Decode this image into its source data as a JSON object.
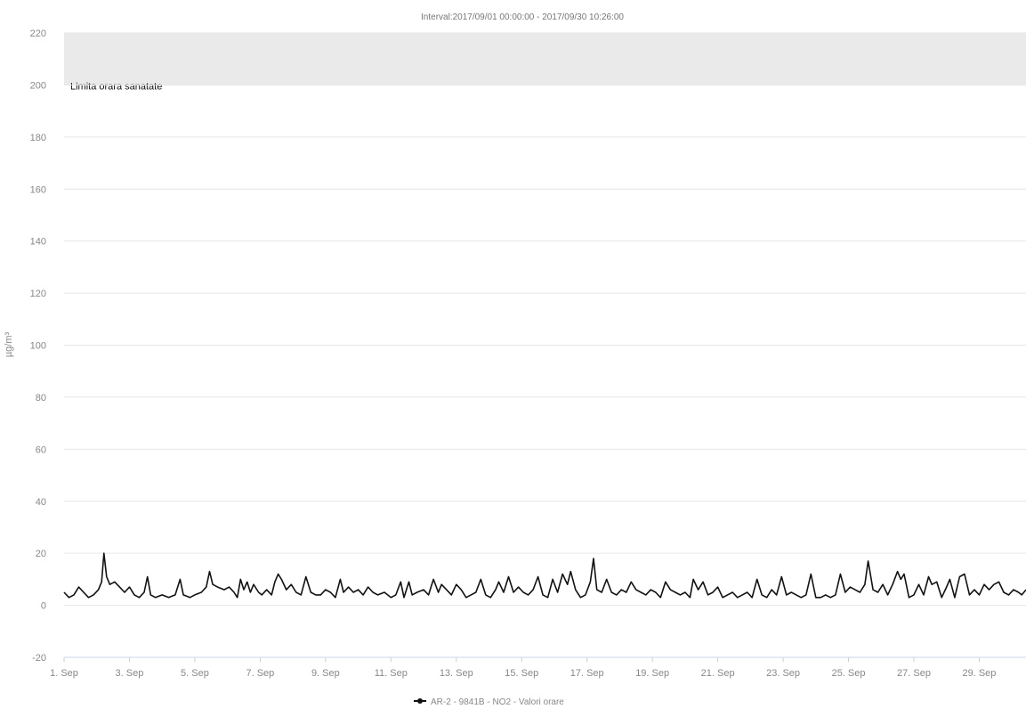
{
  "chart_data": {
    "type": "line",
    "title": "Interval:2017/09/01 00:00:00 - 2017/09/30 10:26:00",
    "ylabel": "µg/m³",
    "xlabel": "",
    "ylim": [
      -20,
      220
    ],
    "yticks": [
      -20,
      0,
      20,
      40,
      60,
      80,
      100,
      120,
      140,
      160,
      180,
      200,
      220
    ],
    "xlim": [
      1,
      30.43
    ],
    "xticks": [
      {
        "day": 1,
        "label": "1. Sep"
      },
      {
        "day": 3,
        "label": "3. Sep"
      },
      {
        "day": 5,
        "label": "5. Sep"
      },
      {
        "day": 7,
        "label": "7. Sep"
      },
      {
        "day": 9,
        "label": "9. Sep"
      },
      {
        "day": 11,
        "label": "11. Sep"
      },
      {
        "day": 13,
        "label": "13. Sep"
      },
      {
        "day": 15,
        "label": "15. Sep"
      },
      {
        "day": 17,
        "label": "17. Sep"
      },
      {
        "day": 19,
        "label": "19. Sep"
      },
      {
        "day": 21,
        "label": "21. Sep"
      },
      {
        "day": 23,
        "label": "23. Sep"
      },
      {
        "day": 25,
        "label": "25. Sep"
      },
      {
        "day": 27,
        "label": "27. Sep"
      },
      {
        "day": 29,
        "label": "29. Sep"
      }
    ],
    "grid": true,
    "legend_position": "bottom-center",
    "plot_band": {
      "from": 200,
      "to": 220,
      "label": "Limita orara sanatate",
      "color": "#d8d8d8"
    },
    "series": [
      {
        "name": "AR-2 - 9841B - NO2 - Valori orare",
        "color": "#111111",
        "points": [
          [
            1.0,
            5
          ],
          [
            1.15,
            3
          ],
          [
            1.3,
            4
          ],
          [
            1.45,
            7
          ],
          [
            1.6,
            5
          ],
          [
            1.75,
            3
          ],
          [
            1.9,
            4
          ],
          [
            2.05,
            6
          ],
          [
            2.15,
            9
          ],
          [
            2.22,
            20
          ],
          [
            2.3,
            11
          ],
          [
            2.4,
            8
          ],
          [
            2.55,
            9
          ],
          [
            2.7,
            7
          ],
          [
            2.85,
            5
          ],
          [
            3.0,
            7
          ],
          [
            3.15,
            4
          ],
          [
            3.3,
            3
          ],
          [
            3.45,
            5
          ],
          [
            3.55,
            11
          ],
          [
            3.65,
            4
          ],
          [
            3.8,
            3
          ],
          [
            4.0,
            4
          ],
          [
            4.2,
            3
          ],
          [
            4.4,
            4
          ],
          [
            4.55,
            10
          ],
          [
            4.65,
            4
          ],
          [
            4.85,
            3
          ],
          [
            5.0,
            4
          ],
          [
            5.2,
            5
          ],
          [
            5.35,
            7
          ],
          [
            5.45,
            13
          ],
          [
            5.55,
            8
          ],
          [
            5.7,
            7
          ],
          [
            5.9,
            6
          ],
          [
            6.05,
            7
          ],
          [
            6.2,
            5
          ],
          [
            6.3,
            3
          ],
          [
            6.4,
            10
          ],
          [
            6.5,
            6
          ],
          [
            6.6,
            9
          ],
          [
            6.7,
            5
          ],
          [
            6.8,
            8
          ],
          [
            6.95,
            5
          ],
          [
            7.05,
            4
          ],
          [
            7.2,
            6
          ],
          [
            7.35,
            4
          ],
          [
            7.45,
            9
          ],
          [
            7.55,
            12
          ],
          [
            7.65,
            10
          ],
          [
            7.8,
            6
          ],
          [
            7.95,
            8
          ],
          [
            8.1,
            5
          ],
          [
            8.25,
            4
          ],
          [
            8.4,
            11
          ],
          [
            8.55,
            5
          ],
          [
            8.7,
            4
          ],
          [
            8.85,
            4
          ],
          [
            9.0,
            6
          ],
          [
            9.15,
            5
          ],
          [
            9.3,
            3
          ],
          [
            9.45,
            10
          ],
          [
            9.55,
            5
          ],
          [
            9.7,
            7
          ],
          [
            9.85,
            5
          ],
          [
            10.0,
            6
          ],
          [
            10.15,
            4
          ],
          [
            10.3,
            7
          ],
          [
            10.45,
            5
          ],
          [
            10.6,
            4
          ],
          [
            10.8,
            5
          ],
          [
            11.0,
            3
          ],
          [
            11.15,
            4
          ],
          [
            11.3,
            9
          ],
          [
            11.4,
            3
          ],
          [
            11.55,
            9
          ],
          [
            11.65,
            4
          ],
          [
            11.8,
            5
          ],
          [
            12.0,
            6
          ],
          [
            12.15,
            4
          ],
          [
            12.3,
            10
          ],
          [
            12.45,
            5
          ],
          [
            12.55,
            8
          ],
          [
            12.7,
            6
          ],
          [
            12.85,
            4
          ],
          [
            13.0,
            8
          ],
          [
            13.15,
            6
          ],
          [
            13.3,
            3
          ],
          [
            13.45,
            4
          ],
          [
            13.6,
            5
          ],
          [
            13.75,
            10
          ],
          [
            13.9,
            4
          ],
          [
            14.05,
            3
          ],
          [
            14.2,
            6
          ],
          [
            14.3,
            9
          ],
          [
            14.45,
            5
          ],
          [
            14.6,
            11
          ],
          [
            14.75,
            5
          ],
          [
            14.9,
            7
          ],
          [
            15.05,
            5
          ],
          [
            15.2,
            4
          ],
          [
            15.35,
            6
          ],
          [
            15.5,
            11
          ],
          [
            15.65,
            4
          ],
          [
            15.8,
            3
          ],
          [
            15.95,
            10
          ],
          [
            16.1,
            5
          ],
          [
            16.25,
            12
          ],
          [
            16.4,
            8
          ],
          [
            16.5,
            13
          ],
          [
            16.65,
            6
          ],
          [
            16.8,
            3
          ],
          [
            16.95,
            4
          ],
          [
            17.1,
            9
          ],
          [
            17.2,
            18
          ],
          [
            17.3,
            6
          ],
          [
            17.45,
            5
          ],
          [
            17.6,
            10
          ],
          [
            17.75,
            5
          ],
          [
            17.9,
            4
          ],
          [
            18.05,
            6
          ],
          [
            18.2,
            5
          ],
          [
            18.35,
            9
          ],
          [
            18.5,
            6
          ],
          [
            18.65,
            5
          ],
          [
            18.8,
            4
          ],
          [
            18.95,
            6
          ],
          [
            19.1,
            5
          ],
          [
            19.25,
            3
          ],
          [
            19.4,
            9
          ],
          [
            19.55,
            6
          ],
          [
            19.7,
            5
          ],
          [
            19.85,
            4
          ],
          [
            20.0,
            5
          ],
          [
            20.15,
            3
          ],
          [
            20.25,
            10
          ],
          [
            20.4,
            6
          ],
          [
            20.55,
            9
          ],
          [
            20.7,
            4
          ],
          [
            20.85,
            5
          ],
          [
            21.0,
            7
          ],
          [
            21.15,
            3
          ],
          [
            21.3,
            4
          ],
          [
            21.45,
            5
          ],
          [
            21.6,
            3
          ],
          [
            21.75,
            4
          ],
          [
            21.9,
            5
          ],
          [
            22.05,
            3
          ],
          [
            22.2,
            10
          ],
          [
            22.35,
            4
          ],
          [
            22.5,
            3
          ],
          [
            22.65,
            6
          ],
          [
            22.8,
            4
          ],
          [
            22.95,
            11
          ],
          [
            23.1,
            4
          ],
          [
            23.25,
            5
          ],
          [
            23.4,
            4
          ],
          [
            23.55,
            3
          ],
          [
            23.7,
            4
          ],
          [
            23.85,
            12
          ],
          [
            24.0,
            3
          ],
          [
            24.15,
            3
          ],
          [
            24.3,
            4
          ],
          [
            24.45,
            3
          ],
          [
            24.6,
            4
          ],
          [
            24.75,
            12
          ],
          [
            24.9,
            5
          ],
          [
            25.05,
            7
          ],
          [
            25.2,
            6
          ],
          [
            25.35,
            5
          ],
          [
            25.5,
            8
          ],
          [
            25.6,
            17
          ],
          [
            25.75,
            6
          ],
          [
            25.9,
            5
          ],
          [
            26.05,
            8
          ],
          [
            26.2,
            4
          ],
          [
            26.35,
            8
          ],
          [
            26.5,
            13
          ],
          [
            26.6,
            10
          ],
          [
            26.7,
            12
          ],
          [
            26.85,
            3
          ],
          [
            27.0,
            4
          ],
          [
            27.15,
            8
          ],
          [
            27.3,
            4
          ],
          [
            27.45,
            11
          ],
          [
            27.55,
            8
          ],
          [
            27.7,
            9
          ],
          [
            27.85,
            3
          ],
          [
            28.0,
            7
          ],
          [
            28.1,
            10
          ],
          [
            28.25,
            3
          ],
          [
            28.4,
            11
          ],
          [
            28.55,
            12
          ],
          [
            28.7,
            4
          ],
          [
            28.85,
            6
          ],
          [
            29.0,
            4
          ],
          [
            29.15,
            8
          ],
          [
            29.3,
            6
          ],
          [
            29.45,
            8
          ],
          [
            29.6,
            9
          ],
          [
            29.75,
            5
          ],
          [
            29.9,
            4
          ],
          [
            30.05,
            6
          ],
          [
            30.2,
            5
          ],
          [
            30.3,
            4
          ],
          [
            30.43,
            6
          ]
        ]
      }
    ]
  }
}
